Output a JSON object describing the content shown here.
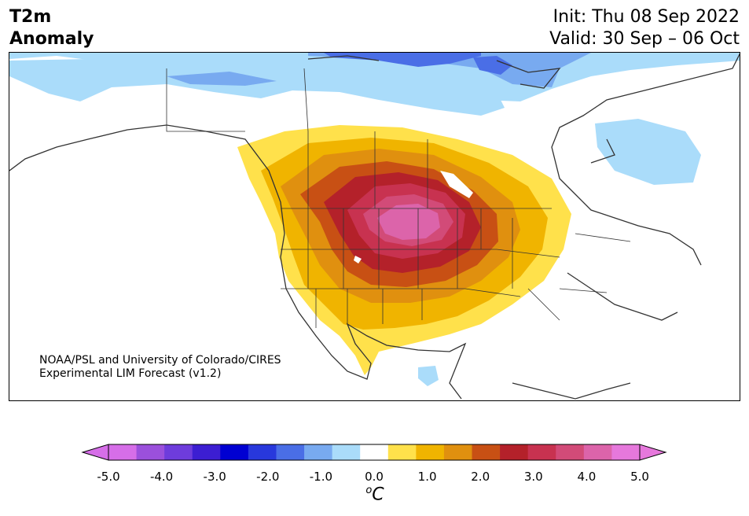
{
  "header": {
    "title_line1": "T2m",
    "title_line2": "Anomaly",
    "init": "Init: Thu 08 Sep 2022",
    "valid": "Valid: 30 Sep – 06 Oct"
  },
  "map": {
    "credit_line1": "NOAA/PSL and University of Colorado/CIRES",
    "credit_line2": "Experimental LIM Forecast (v1.2)",
    "region": "North America"
  },
  "colorbar": {
    "unit_symbol": "o",
    "unit_letter": "C",
    "tick_labels": [
      "-5.0",
      "-4.0",
      "-3.0",
      "-2.0",
      "-1.0",
      "0.0",
      "1.0",
      "2.0",
      "3.0",
      "4.0",
      "5.0"
    ],
    "levels": [
      -5.0,
      -4.5,
      -4.0,
      -3.5,
      -3.0,
      -2.5,
      -2.0,
      -1.5,
      -1.0,
      -0.5,
      0.5,
      1.0,
      1.5,
      2.0,
      2.5,
      3.0,
      3.5,
      4.0,
      4.5,
      5.0
    ],
    "colors": [
      "#d66ee8",
      "#9b50dc",
      "#6e3cdc",
      "#3c1ed2",
      "#0000d2",
      "#2838dc",
      "#4a6ee6",
      "#78aaf0",
      "#aadcfa",
      "#ffffff",
      "#ffe14b",
      "#f0b400",
      "#e0900f",
      "#c85014",
      "#b4212a",
      "#c83250",
      "#d24b78",
      "#dc64aa",
      "#e678dc"
    ],
    "extend_min_color": "#d66ee8",
    "extend_max_color": "#e678dc"
  }
}
